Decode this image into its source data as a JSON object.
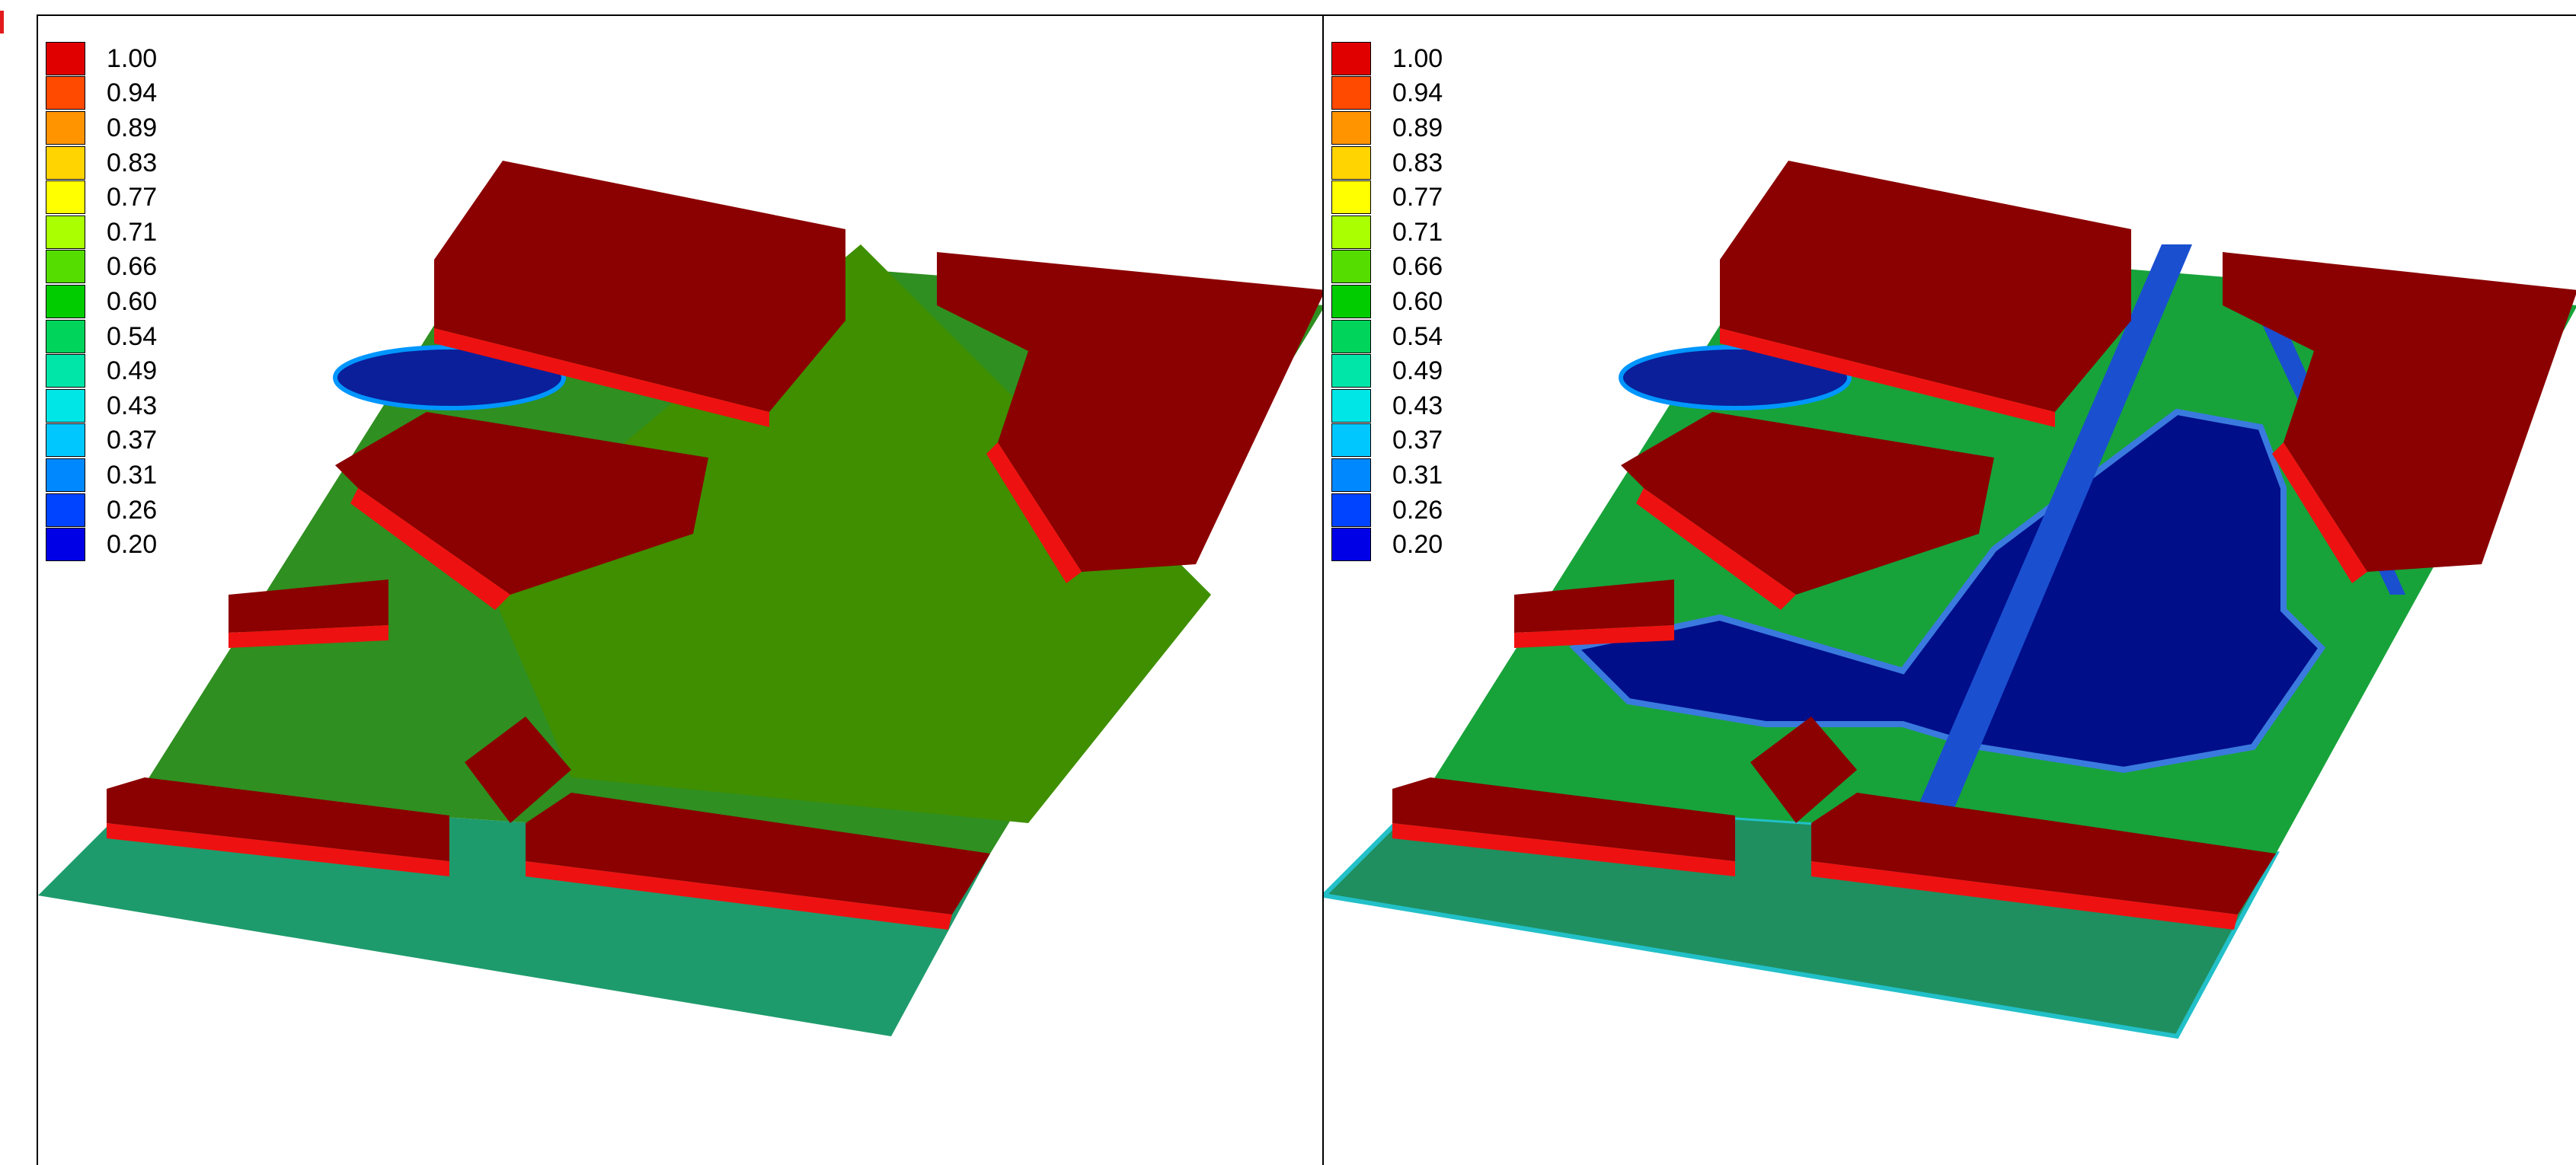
{
  "legend": {
    "entries": [
      {
        "label": "1.00",
        "color": "#e00000"
      },
      {
        "label": "0.94",
        "color": "#ff4a00"
      },
      {
        "label": "0.89",
        "color": "#ff9400"
      },
      {
        "label": "0.83",
        "color": "#ffd400"
      },
      {
        "label": "0.77",
        "color": "#ffff00"
      },
      {
        "label": "0.71",
        "color": "#aaff00"
      },
      {
        "label": "0.66",
        "color": "#55dd00"
      },
      {
        "label": "0.60",
        "color": "#00cc00"
      },
      {
        "label": "0.54",
        "color": "#00d45a"
      },
      {
        "label": "0.49",
        "color": "#00e6a8"
      },
      {
        "label": "0.43",
        "color": "#00e6e6"
      },
      {
        "label": "0.37",
        "color": "#00c8ff"
      },
      {
        "label": "0.31",
        "color": "#0088ff"
      },
      {
        "label": "0.26",
        "color": "#0044ff"
      },
      {
        "label": "0.20",
        "color": "#0000e6"
      }
    ]
  },
  "colors": {
    "building": "#8b0000",
    "building_edge": "#ee1111",
    "ground_green": "#3f8f00",
    "ground_mid": "#17a33a",
    "ground_front": "#1e9b6c",
    "water_deep": "#000e8a",
    "water_light": "#1a4fd0"
  }
}
